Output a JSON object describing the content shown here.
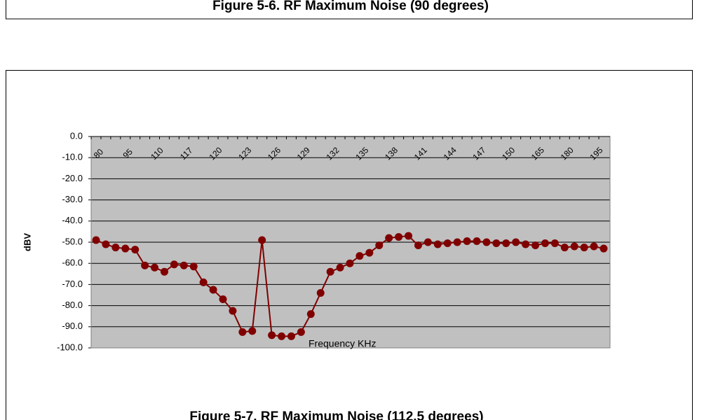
{
  "previous_caption": "Figure 5-6. RF Maximum Noise (90 degrees)",
  "figure_caption": "Figure 5-7. RF Maximum Noise (112.5 degrees)",
  "chart_data": {
    "type": "line",
    "y_label": "dBV",
    "x_label": "Frequency KHz",
    "categories": [
      "80",
      null,
      null,
      "95",
      null,
      null,
      "110",
      null,
      null,
      "117",
      null,
      null,
      "120",
      null,
      null,
      "123",
      null,
      null,
      "126",
      null,
      null,
      "129",
      null,
      null,
      "132",
      null,
      null,
      "135",
      null,
      null,
      "138",
      null,
      null,
      "141",
      null,
      null,
      "144",
      null,
      null,
      "147",
      null,
      null,
      "150",
      null,
      null,
      "165",
      null,
      null,
      "180",
      null,
      null,
      "195",
      null
    ],
    "values": [
      -49,
      -51,
      -52.5,
      -53,
      -53.5,
      -61,
      -62,
      -64,
      -60.5,
      -61,
      -61.5,
      -69,
      -72.5,
      -77,
      -82.5,
      -92.5,
      -92,
      -49,
      -94,
      -94.5,
      -94.5,
      -92.5,
      -84,
      -74,
      -64,
      -62,
      -60,
      -56.5,
      -55,
      -51.5,
      -48,
      -47.5,
      -47,
      -51.5,
      -50,
      -51,
      -50.5,
      -50,
      -49.5,
      -49.5,
      -50,
      -50.5,
      -50.5,
      -50,
      -51,
      -51.5,
      -50.5,
      -50.5,
      -52.5,
      -52,
      -52.5,
      -52,
      -53
    ],
    "color": "#800000",
    "ylim": [
      -100,
      0
    ],
    "yticks": [
      {
        "value": 0,
        "label": "0.0"
      },
      {
        "value": -10,
        "label": "-10.0"
      },
      {
        "value": -20,
        "label": "-20.0"
      },
      {
        "value": -30,
        "label": "-30.0"
      },
      {
        "value": -40,
        "label": "-40.0"
      },
      {
        "value": -50,
        "label": "-50.0"
      },
      {
        "value": -60,
        "label": "-60.0"
      },
      {
        "value": -70,
        "label": "-70.0"
      },
      {
        "value": -80,
        "label": "-80.0"
      },
      {
        "value": -90,
        "label": "-90.0"
      },
      {
        "value": -100,
        "label": "-100.0"
      }
    ],
    "grid": true
  }
}
